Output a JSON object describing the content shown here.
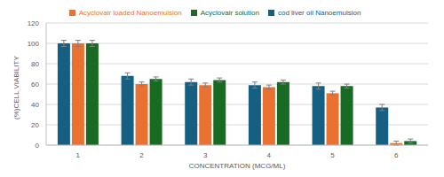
{
  "chart_data": {
    "type": "bar",
    "x_label": "CONCENTRATION (MCG/ML)",
    "y_label": "(%)CELL VIABILITY",
    "categories": [
      "1",
      "2",
      "3",
      "4",
      "5",
      "6"
    ],
    "series": [
      {
        "name": "cod liver oil Nanoemulsion",
        "color": "#156082",
        "values": [
          100,
          68,
          62,
          59,
          58,
          37
        ],
        "errors": [
          3,
          3,
          3,
          3,
          3,
          3
        ]
      },
      {
        "name": "Acyclovair  loaded Nanoemulsion",
        "color": "#e97132",
        "values": [
          100,
          60,
          59,
          57,
          51,
          2
        ],
        "errors": [
          3,
          2,
          2,
          2,
          2,
          2
        ]
      },
      {
        "name": "Acyclovair solution",
        "color": "#196b24",
        "values": [
          100,
          65,
          64,
          62,
          58,
          4
        ],
        "errors": [
          3,
          2,
          2,
          2,
          2,
          2
        ]
      }
    ],
    "ylim": [
      0,
      120
    ],
    "yticks": [
      0,
      20,
      40,
      60,
      80,
      100,
      120
    ],
    "grid": true,
    "legend": "top"
  }
}
